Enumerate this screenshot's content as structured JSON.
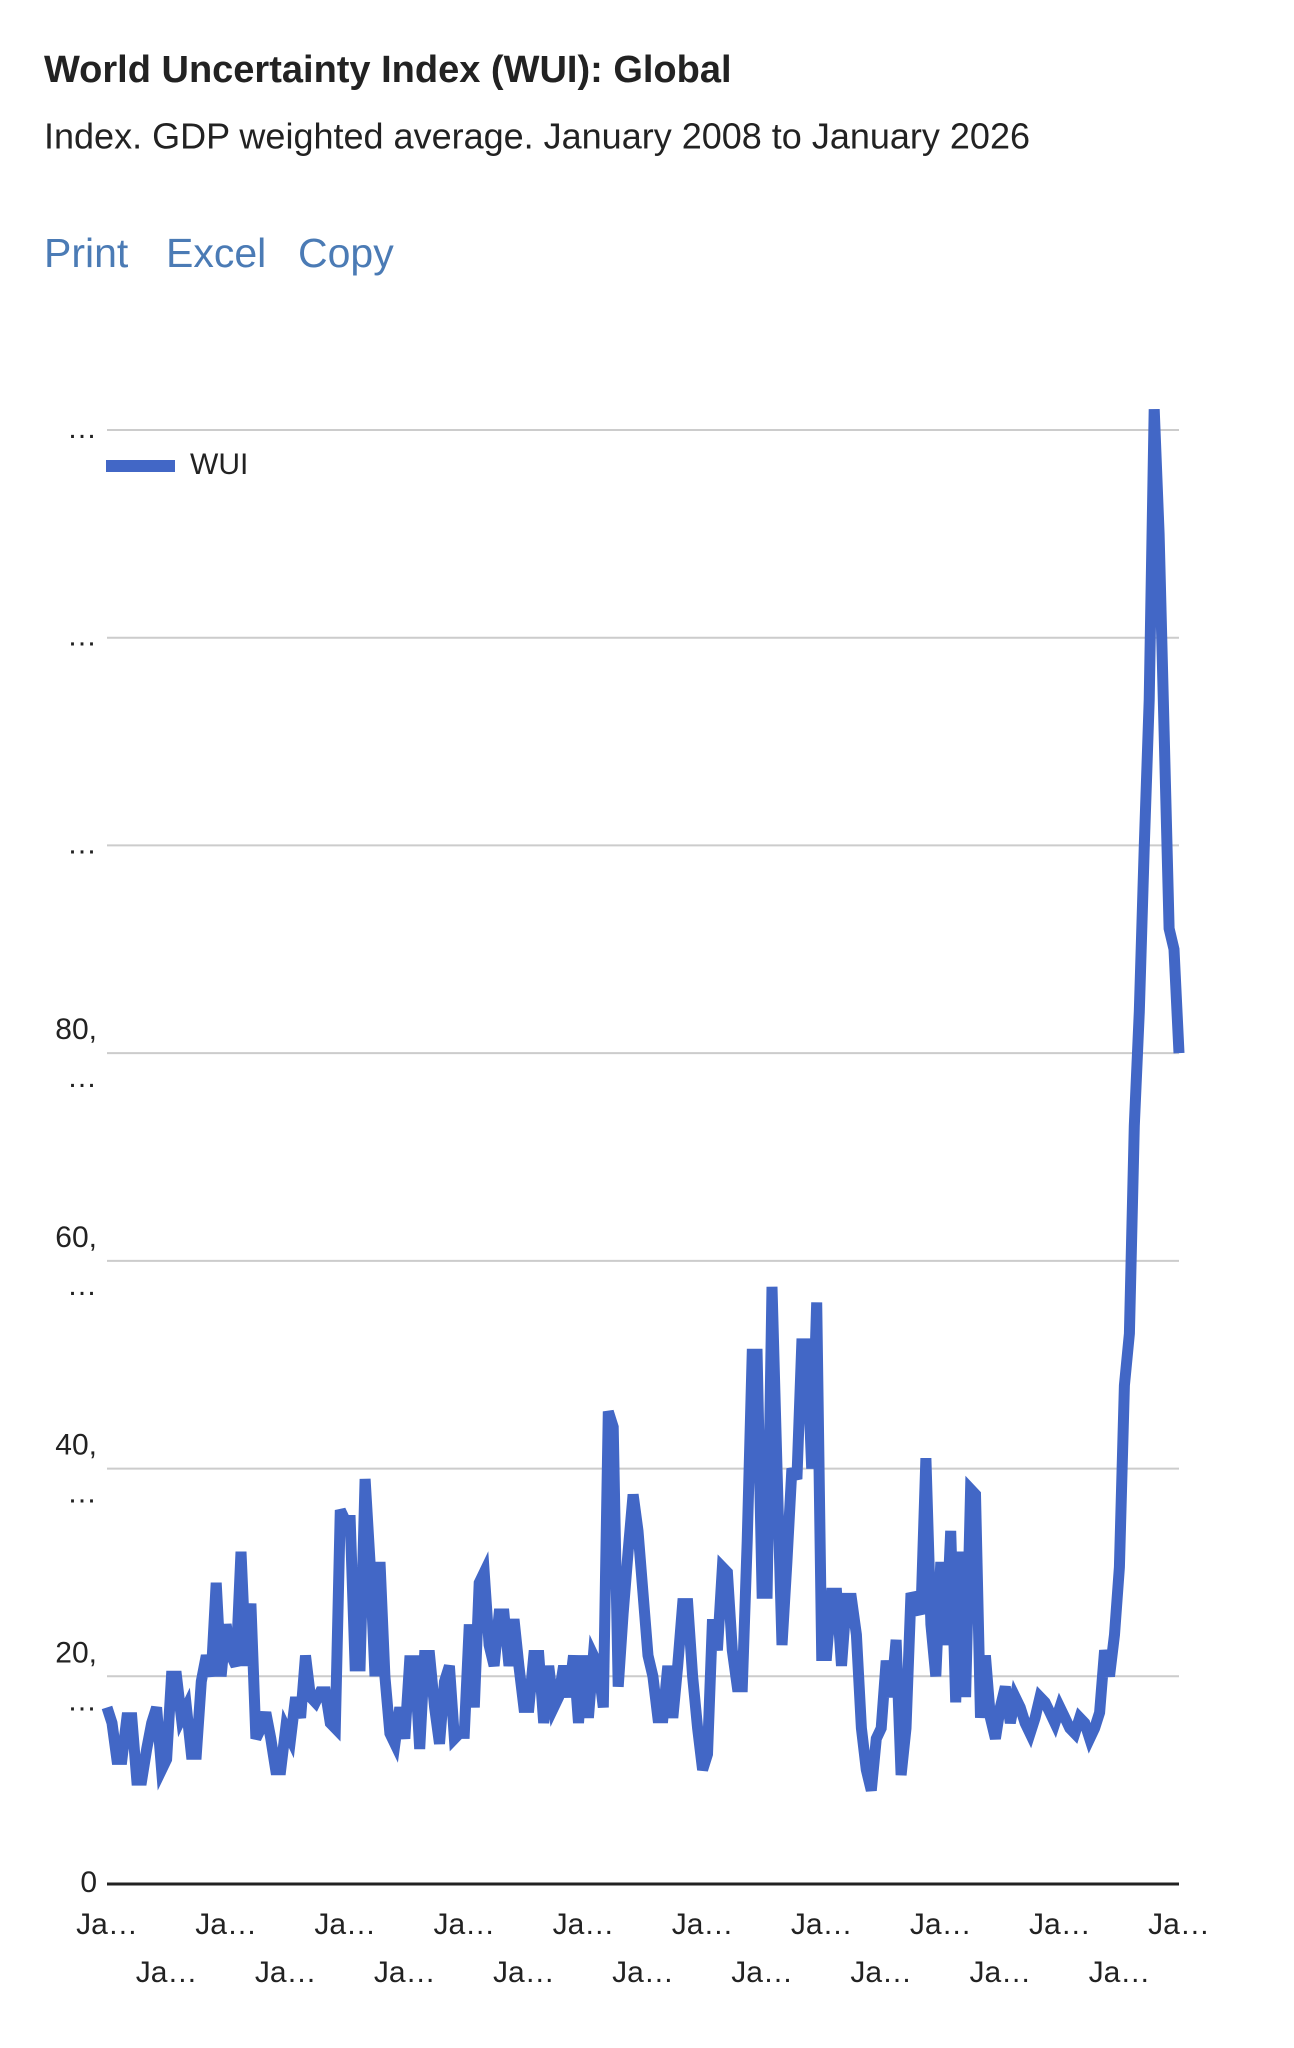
{
  "chart_data": {
    "type": "line",
    "title": "World Uncertainty Index (WUI): Global",
    "subtitle": "Index. GDP weighted average. January 2008 to January 2026",
    "categories": [
      "Ja…",
      null,
      null,
      null,
      null,
      null,
      null,
      null,
      null,
      null,
      null,
      null,
      "Ja…",
      null,
      null,
      null,
      null,
      null,
      null,
      null,
      null,
      null,
      null,
      null,
      "Ja…",
      null,
      null,
      null,
      null,
      null,
      null,
      null,
      null,
      null,
      null,
      null,
      "Ja…",
      null,
      null,
      null,
      null,
      null,
      null,
      null,
      null,
      null,
      null,
      null,
      "Ja…",
      null,
      null,
      null,
      null,
      null,
      null,
      null,
      null,
      null,
      null,
      null,
      "Ja…",
      null,
      null,
      null,
      null,
      null,
      null,
      null,
      null,
      null,
      null,
      null,
      "Ja…",
      null,
      null,
      null,
      null,
      null,
      null,
      null,
      null,
      null,
      null,
      null,
      "Ja…",
      null,
      null,
      null,
      null,
      null,
      null,
      null,
      null,
      null,
      null,
      null,
      "Ja…",
      null,
      null,
      null,
      null,
      null,
      null,
      null,
      null,
      null,
      null,
      null,
      "Ja…",
      null,
      null,
      null,
      null,
      null,
      null,
      null,
      null,
      null,
      null,
      null,
      "Ja…",
      null,
      null,
      null,
      null,
      null,
      null,
      null,
      null,
      null,
      null,
      null,
      "Ja…",
      null,
      null,
      null,
      null,
      null,
      null,
      null,
      null,
      null,
      null,
      null,
      "Ja…",
      null,
      null,
      null,
      null,
      null,
      null,
      null,
      null,
      null,
      null,
      null,
      "Ja…",
      null,
      null,
      null,
      null,
      null,
      null,
      null,
      null,
      null,
      null,
      null,
      "Ja…",
      null,
      null,
      null,
      null,
      null,
      null,
      null,
      null,
      null,
      null,
      null,
      "Ja…",
      null,
      null,
      null,
      null,
      null,
      null,
      null,
      null,
      null,
      null,
      null,
      "Ja…",
      null,
      null,
      null,
      null,
      null,
      null,
      null,
      null,
      null,
      null,
      null,
      "Ja…",
      null,
      null,
      null,
      null,
      null,
      null,
      null,
      null,
      null,
      null,
      null,
      "Ja…"
    ],
    "series": [
      {
        "name": "WUI",
        "color": "#4267c6",
        "values": [
          17000,
          15500,
          12000,
          12000,
          16000,
          16000,
          10000,
          10000,
          13000,
          15500,
          17000,
          11000,
          12000,
          20000,
          20000,
          16000,
          17000,
          12500,
          12500,
          19500,
          22000,
          20000,
          29000,
          20000,
          25000,
          22000,
          21000,
          32000,
          21000,
          27000,
          14000,
          15000,
          16500,
          14000,
          11000,
          11000,
          15000,
          14000,
          18000,
          16000,
          22000,
          18000,
          17500,
          18500,
          18500,
          15500,
          15000,
          36000,
          35000,
          35000,
          21000,
          21000,
          39000,
          31000,
          20000,
          31000,
          20000,
          14500,
          13500,
          17000,
          14000,
          21500,
          21500,
          13000,
          22000,
          22000,
          17000,
          13500,
          19500,
          21000,
          14000,
          14500,
          14500,
          25000,
          17000,
          29000,
          30000,
          23000,
          21000,
          26000,
          26000,
          21000,
          25500,
          21000,
          17000,
          17000,
          22000,
          22000,
          15500,
          21000,
          17000,
          18000,
          21000,
          18000,
          22000,
          15500,
          22000,
          16000,
          22000,
          21000,
          17000,
          45500,
          44000,
          19000,
          26000,
          32000,
          37500,
          34000,
          28000,
          22000,
          20000,
          16000,
          16000,
          21000,
          16000,
          21000,
          27000,
          27000,
          20000,
          15000,
          11000,
          12500,
          25500,
          22500,
          30500,
          30000,
          22500,
          19000,
          19000,
          33000,
          51000,
          51000,
          28000,
          28000,
          57500,
          40000,
          23000,
          31000,
          40000,
          39000,
          52000,
          52000,
          40000,
          56000,
          22000,
          22000,
          28000,
          28000,
          21000,
          27500,
          27500,
          24000,
          15000,
          11000,
          9000,
          14000,
          15000,
          21500,
          18000,
          23500,
          10500,
          15000,
          28000,
          27000,
          26000,
          41000,
          25000,
          20000,
          31000,
          23000,
          34000,
          17500,
          32000,
          18000,
          38000,
          37500,
          16000,
          22000,
          16000,
          14000,
          17000,
          19000,
          15500,
          18000,
          17000,
          15500,
          14500,
          16000,
          18000,
          17500,
          16500,
          15500,
          17000,
          16000,
          15000,
          14500,
          16000,
          15500,
          14000,
          15000,
          16500,
          22500,
          20000,
          24000,
          30500,
          48000,
          53000,
          73000,
          84000,
          100000,
          114000,
          142000,
          130000,
          111000,
          92000,
          90000,
          80000
        ]
      }
    ],
    "ylim": [
      0,
      140000
    ],
    "yticks": [
      0,
      {
        "value": 20000,
        "label": "20,…"
      },
      {
        "value": 40000,
        "label": "40,…"
      },
      {
        "value": 60000,
        "label": "60,…"
      },
      {
        "value": 80000,
        "label": "80,…"
      },
      {
        "value": 100000,
        "label": "…"
      },
      {
        "value": 120000,
        "label": "…"
      },
      {
        "value": 140000,
        "label": "…"
      }
    ],
    "grid": true,
    "legend": "top-left"
  },
  "links": [
    "Print",
    "Excel",
    "Copy"
  ]
}
